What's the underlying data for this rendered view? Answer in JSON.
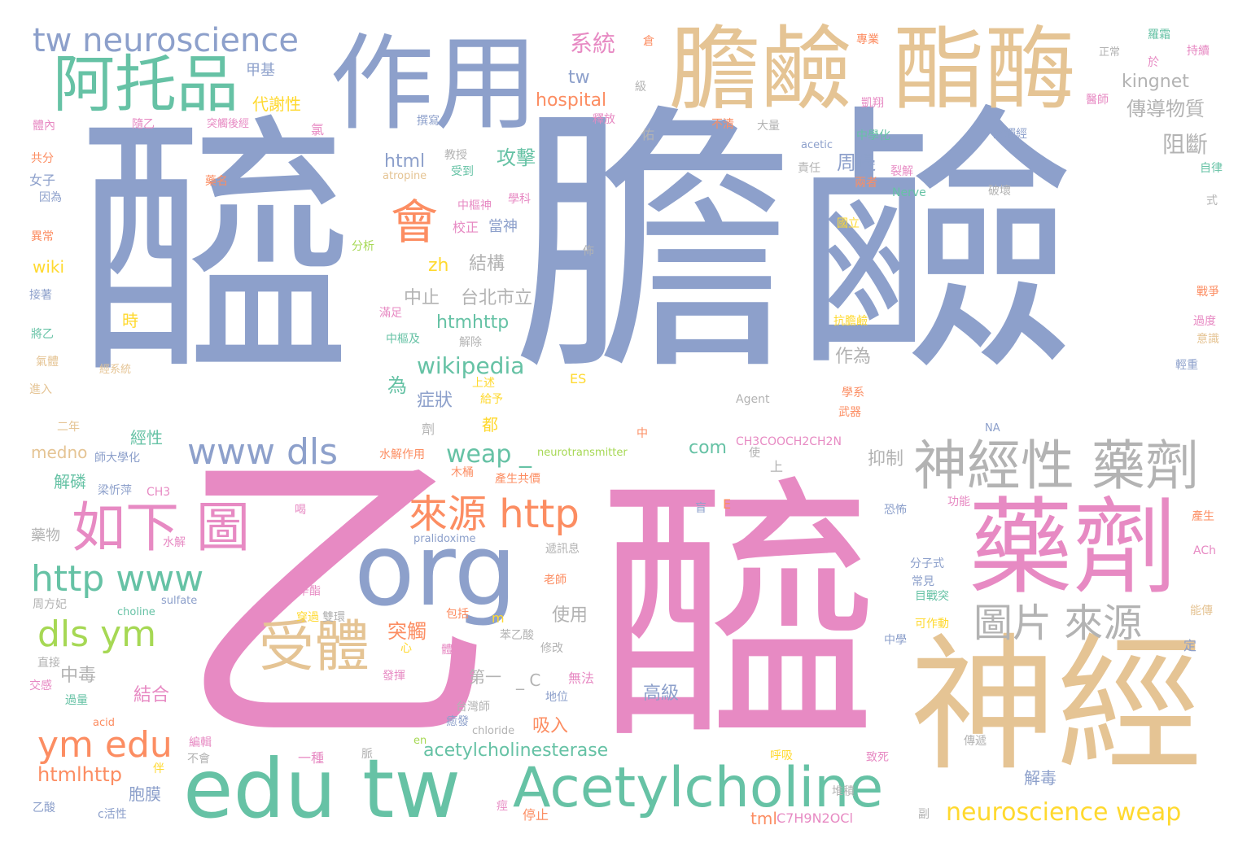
{
  "colors": {
    "background": "#ffffff",
    "blue": "#8da0cb",
    "pink": "#e78ac3",
    "tan": "#e5c494",
    "green": "#66c2a5",
    "orange": "#fc8d62",
    "gray": "#b3b3b3",
    "lime": "#a6d854",
    "yellow": "#ffd92f"
  },
  "words": [
    {
      "text": "醯",
      "color": "blue"
    },
    {
      "text": "膽鹼",
      "color": "blue"
    },
    {
      "text": "乙",
      "color": "pink"
    },
    {
      "text": "醯",
      "color": "pink"
    },
    {
      "text": "神經",
      "color": "tan"
    },
    {
      "text": "作用",
      "color": "blue"
    },
    {
      "text": "膽鹼",
      "color": "tan"
    },
    {
      "text": "酯酶",
      "color": "tan"
    },
    {
      "text": "org",
      "color": "blue"
    },
    {
      "text": "藥劑",
      "color": "pink"
    },
    {
      "text": "edu tw",
      "color": "green"
    },
    {
      "text": "Acetylcholine",
      "color": "green"
    },
    {
      "text": "阿托品",
      "color": "green"
    },
    {
      "text": "神經性 藥劑",
      "color": "gray"
    },
    {
      "text": "受體",
      "color": "tan"
    },
    {
      "text": "如下 圖",
      "color": "pink"
    },
    {
      "text": "tw neuroscience",
      "color": "blue"
    },
    {
      "text": "www dls",
      "color": "blue"
    },
    {
      "text": "圖片 來源",
      "color": "gray"
    },
    {
      "text": "會",
      "color": "orange"
    },
    {
      "text": "來源 http",
      "color": "orange"
    },
    {
      "text": "http www",
      "color": "green"
    },
    {
      "text": "ym edu",
      "color": "orange"
    },
    {
      "text": "dls ym",
      "color": "lime"
    },
    {
      "text": "neuroscience weap",
      "color": "yellow"
    },
    {
      "text": "weap _",
      "color": "green"
    },
    {
      "text": "acetylcholinesterase",
      "color": "green"
    },
    {
      "text": "wikipedia",
      "color": "green"
    },
    {
      "text": "htmlhttp",
      "color": "orange"
    },
    {
      "text": "系統",
      "color": "pink"
    },
    {
      "text": "hospital",
      "color": "orange"
    },
    {
      "text": "tw",
      "color": "blue"
    },
    {
      "text": "傳導物質",
      "color": "gray"
    },
    {
      "text": "阻斷",
      "color": "gray"
    },
    {
      "text": "kingnet",
      "color": "gray"
    },
    {
      "text": "html",
      "color": "blue"
    },
    {
      "text": "攻擊",
      "color": "green"
    },
    {
      "text": "周邊",
      "color": "blue"
    },
    {
      "text": "htmhttp",
      "color": "green"
    },
    {
      "text": "台北市立",
      "color": "gray"
    },
    {
      "text": "中止",
      "color": "gray"
    },
    {
      "text": "結構",
      "color": "gray"
    },
    {
      "text": "zh",
      "color": "yellow"
    },
    {
      "text": "com",
      "color": "green"
    },
    {
      "text": "抑制",
      "color": "gray"
    },
    {
      "text": "作為",
      "color": "gray"
    },
    {
      "text": "症狀",
      "color": "blue"
    },
    {
      "text": "為",
      "color": "green"
    },
    {
      "text": "突觸",
      "color": "orange"
    },
    {
      "text": "使用",
      "color": "gray"
    },
    {
      "text": "中毒",
      "color": "gray"
    },
    {
      "text": "結合",
      "color": "pink"
    },
    {
      "text": "吸入",
      "color": "orange"
    },
    {
      "text": "高級",
      "color": "blue"
    },
    {
      "text": "第一",
      "color": "gray"
    },
    {
      "text": "_ C",
      "color": "gray"
    },
    {
      "text": "解毒",
      "color": "blue"
    },
    {
      "text": "胞膜",
      "color": "blue"
    },
    {
      "text": "wiki",
      "color": "yellow"
    },
    {
      "text": "甲基",
      "color": "blue"
    },
    {
      "text": "代謝性",
      "color": "yellow"
    },
    {
      "text": "medno",
      "color": "tan"
    },
    {
      "text": "解磷",
      "color": "green"
    },
    {
      "text": "經性",
      "color": "green"
    },
    {
      "text": "藥物",
      "color": "gray"
    },
    {
      "text": "時",
      "color": "yellow"
    },
    {
      "text": "tml",
      "color": "orange"
    },
    {
      "text": "C7H9N2OCl",
      "color": "pink"
    },
    {
      "text": "Agent",
      "color": "gray"
    },
    {
      "text": "CH3COOCH2CH2N",
      "color": "pink"
    },
    {
      "text": "neurotransmitter",
      "color": "lime"
    },
    {
      "text": "當神",
      "color": "blue"
    },
    {
      "text": "校正",
      "color": "pink"
    },
    {
      "text": "分析",
      "color": "lime"
    },
    {
      "text": "ES",
      "color": "yellow"
    },
    {
      "text": "E",
      "color": "orange"
    },
    {
      "text": "m",
      "color": "yellow"
    },
    {
      "text": "CH3",
      "color": "pink"
    },
    {
      "text": "acetic",
      "color": "blue"
    },
    {
      "text": "Nerve",
      "color": "green"
    },
    {
      "text": "atropine",
      "color": "tan"
    },
    {
      "text": "pralidoxime",
      "color": "blue"
    },
    {
      "text": "choline",
      "color": "green"
    },
    {
      "text": "sulfate",
      "color": "blue"
    },
    {
      "text": "chloride",
      "color": "gray"
    },
    {
      "text": "acid",
      "color": "orange"
    },
    {
      "text": "en",
      "color": "lime"
    },
    {
      "text": "ACh",
      "color": "pink"
    },
    {
      "text": "NA",
      "color": "blue"
    },
    {
      "text": "中學化",
      "color": "green"
    },
    {
      "text": "突觸後經",
      "color": "pink"
    },
    {
      "text": "突觸經",
      "color": "blue"
    },
    {
      "text": "破壞",
      "color": "gray"
    },
    {
      "text": "正常",
      "color": "gray"
    },
    {
      "text": "持續",
      "color": "pink"
    },
    {
      "text": "自律",
      "color": "green"
    },
    {
      "text": "戰爭",
      "color": "orange"
    },
    {
      "text": "過度",
      "color": "pink"
    },
    {
      "text": "意識",
      "color": "tan"
    },
    {
      "text": "輕重",
      "color": "blue"
    },
    {
      "text": "功能",
      "color": "pink"
    },
    {
      "text": "產生",
      "color": "orange"
    },
    {
      "text": "能傳",
      "color": "tan"
    },
    {
      "text": "定",
      "color": "blue"
    },
    {
      "text": "分子式",
      "color": "blue"
    },
    {
      "text": "常見",
      "color": "blue"
    },
    {
      "text": "目戰突",
      "color": "green"
    },
    {
      "text": "可作動",
      "color": "yellow"
    },
    {
      "text": "中學",
      "color": "blue"
    },
    {
      "text": "傳遞",
      "color": "gray"
    },
    {
      "text": "致死",
      "color": "pink"
    },
    {
      "text": "堆積",
      "color": "gray"
    },
    {
      "text": "停止",
      "color": "orange"
    },
    {
      "text": "痙",
      "color": "pink"
    },
    {
      "text": "伴",
      "color": "yellow"
    },
    {
      "text": "乙酸",
      "color": "blue"
    },
    {
      "text": "c活性",
      "color": "blue"
    },
    {
      "text": "過量",
      "color": "green"
    },
    {
      "text": "交感",
      "color": "pink"
    },
    {
      "text": "直接",
      "color": "gray"
    },
    {
      "text": "周方妃",
      "color": "gray"
    },
    {
      "text": "梁忻萍",
      "color": "blue"
    },
    {
      "text": "師大學化",
      "color": "blue"
    },
    {
      "text": "二年",
      "color": "tan"
    },
    {
      "text": "進入",
      "color": "tan"
    },
    {
      "text": "氣體",
      "color": "tan"
    },
    {
      "text": "將乙",
      "color": "green"
    },
    {
      "text": "接著",
      "color": "blue"
    },
    {
      "text": "異常",
      "color": "orange"
    },
    {
      "text": "因為",
      "color": "blue"
    },
    {
      "text": "女子",
      "color": "blue"
    },
    {
      "text": "共分",
      "color": "orange"
    },
    {
      "text": "體內",
      "color": "pink"
    },
    {
      "text": "隨乙",
      "color": "pink"
    },
    {
      "text": "氯",
      "color": "pink"
    },
    {
      "text": "藥名",
      "color": "orange"
    },
    {
      "text": "經系統",
      "color": "tan"
    },
    {
      "text": "撰寫",
      "color": "blue"
    },
    {
      "text": "受到",
      "color": "green"
    },
    {
      "text": "中樞神",
      "color": "pink"
    },
    {
      "text": "學科",
      "color": "pink"
    },
    {
      "text": "教授",
      "color": "gray"
    },
    {
      "text": "釋放",
      "color": "pink"
    },
    {
      "text": "不清",
      "color": "orange"
    },
    {
      "text": "佑",
      "color": "gray"
    },
    {
      "text": "大量",
      "color": "gray"
    },
    {
      "text": "責任",
      "color": "gray"
    },
    {
      "text": "兩者",
      "color": "orange"
    },
    {
      "text": "裂解",
      "color": "pink"
    },
    {
      "text": "國立",
      "color": "yellow"
    },
    {
      "text": "抗膽鹼",
      "color": "yellow"
    },
    {
      "text": "學系",
      "color": "orange"
    },
    {
      "text": "武器",
      "color": "orange"
    },
    {
      "text": "滿足",
      "color": "pink"
    },
    {
      "text": "中樞及",
      "color": "green"
    },
    {
      "text": "解除",
      "color": "gray"
    },
    {
      "text": "上述",
      "color": "yellow"
    },
    {
      "text": "給予",
      "color": "yellow"
    },
    {
      "text": "都",
      "color": "yellow"
    },
    {
      "text": "劑",
      "color": "gray"
    },
    {
      "text": "水解作用",
      "color": "orange"
    },
    {
      "text": "木桶",
      "color": "orange"
    },
    {
      "text": "產生共價",
      "color": "orange"
    },
    {
      "text": "中",
      "color": "orange"
    },
    {
      "text": "使",
      "color": "gray"
    },
    {
      "text": "上",
      "color": "gray"
    },
    {
      "text": "盲",
      "color": "blue"
    },
    {
      "text": "佈",
      "color": "gray"
    },
    {
      "text": "遞訊息",
      "color": "gray"
    },
    {
      "text": "老師",
      "color": "orange"
    },
    {
      "text": "心",
      "color": "yellow"
    },
    {
      "text": "包括",
      "color": "orange"
    },
    {
      "text": "穿過",
      "color": "yellow"
    },
    {
      "text": "雙環",
      "color": "gray"
    },
    {
      "text": "辛酯",
      "color": "pink"
    },
    {
      "text": "體內時",
      "color": "pink"
    },
    {
      "text": "苯乙酸",
      "color": "gray"
    },
    {
      "text": "修改",
      "color": "gray"
    },
    {
      "text": "無法",
      "color": "pink"
    },
    {
      "text": "地位",
      "color": "blue"
    },
    {
      "text": "台灣師",
      "color": "gray"
    },
    {
      "text": "癒發",
      "color": "blue"
    },
    {
      "text": "不會",
      "color": "gray"
    },
    {
      "text": "編輯",
      "color": "pink"
    },
    {
      "text": "一種",
      "color": "pink"
    },
    {
      "text": "脈",
      "color": "gray"
    },
    {
      "text": "呼吸",
      "color": "yellow"
    },
    {
      "text": "副",
      "color": "gray"
    },
    {
      "text": "水解",
      "color": "pink"
    },
    {
      "text": "發揮",
      "color": "pink"
    },
    {
      "text": "恐怖",
      "color": "blue"
    },
    {
      "text": "醫師",
      "color": "pink"
    },
    {
      "text": "凱翔",
      "color": "pink"
    },
    {
      "text": "專業",
      "color": "orange"
    },
    {
      "text": "羅霜",
      "color": "green"
    },
    {
      "text": "於",
      "color": "pink"
    },
    {
      "text": "式",
      "color": "gray"
    },
    {
      "text": "級",
      "color": "gray"
    },
    {
      "text": "倉",
      "color": "orange"
    },
    {
      "text": "喝",
      "color": "pink"
    }
  ]
}
